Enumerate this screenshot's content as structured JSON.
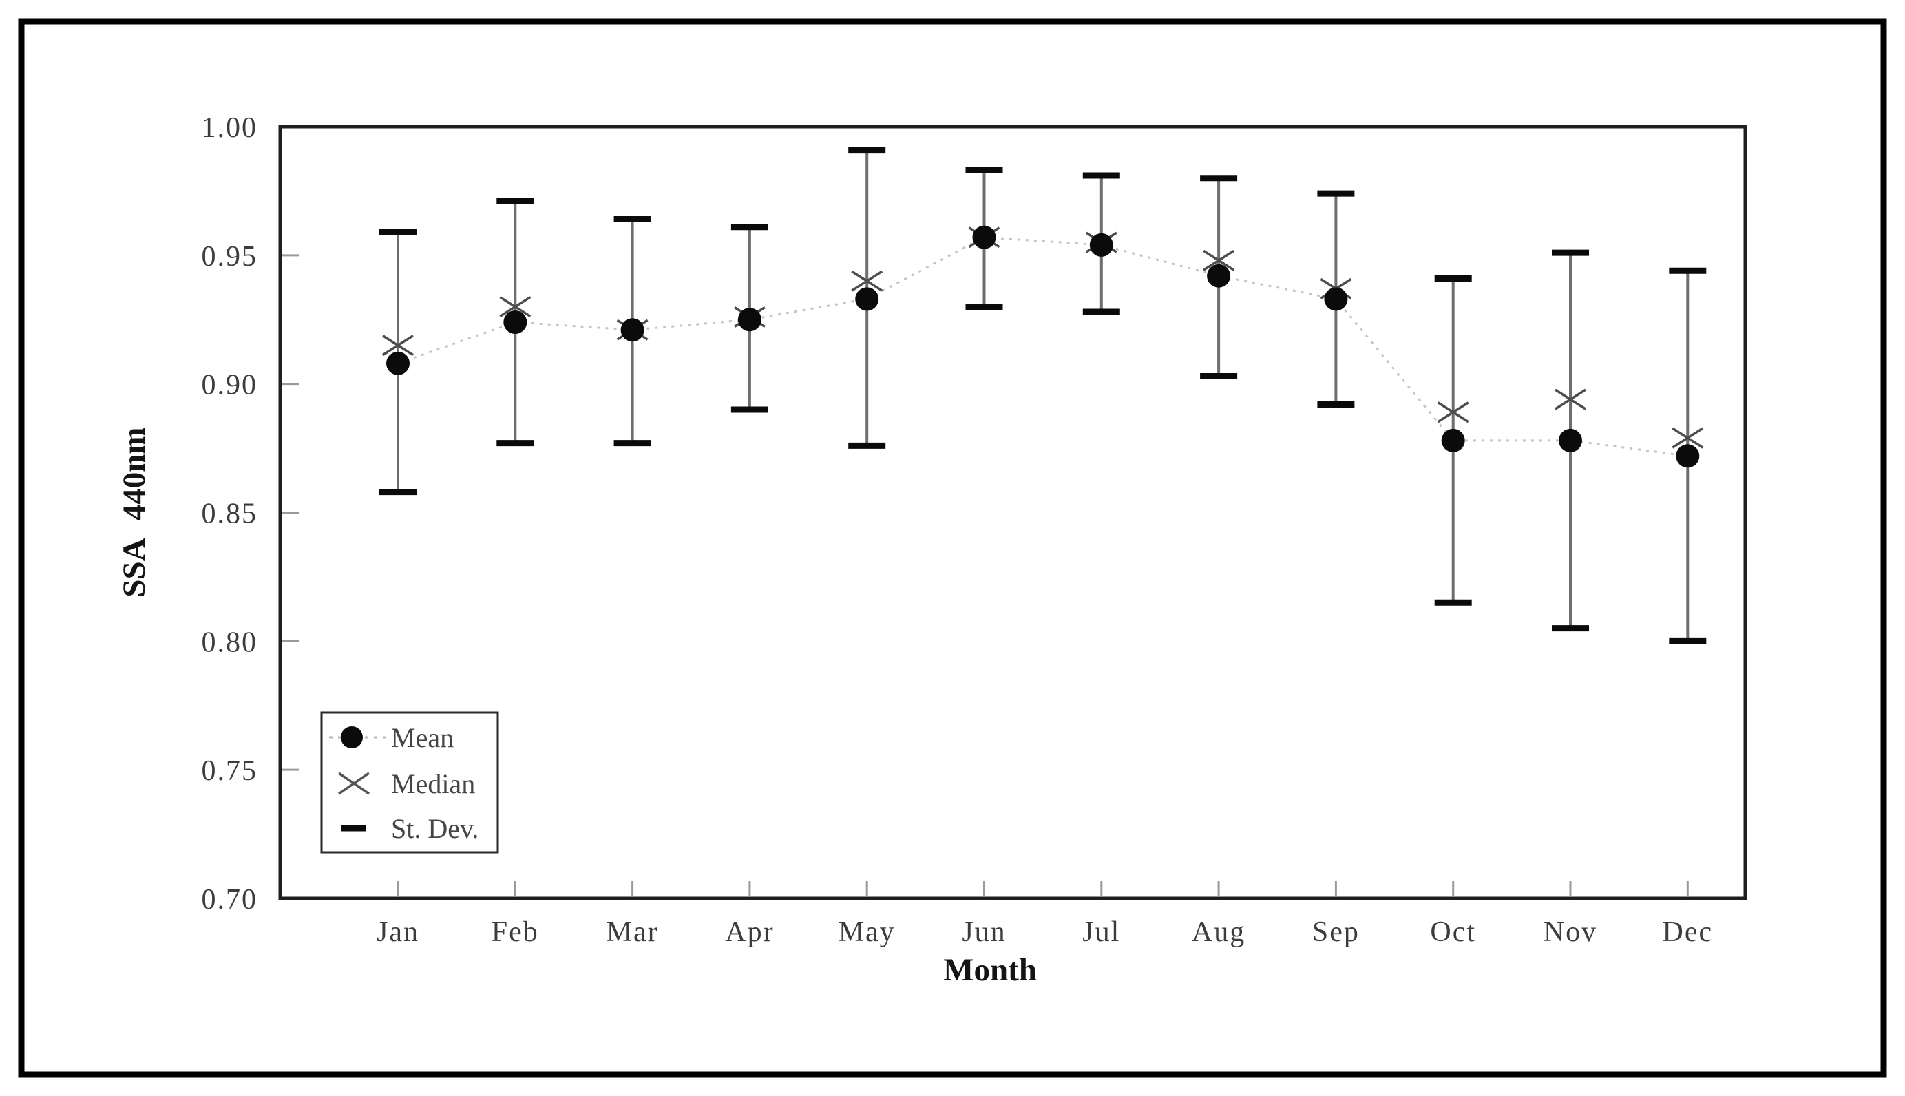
{
  "figure": {
    "description": "Monthly statistics of single scattering albedo at 440nm: mean, median and standard deviation error bars",
    "background_color": "#ffffff",
    "outer_border_color": "#000000"
  },
  "chart_data": {
    "type": "line",
    "title": "",
    "xlabel": "Month",
    "ylabel": "SSA 440nm",
    "categories": [
      "Jan",
      "Feb",
      "Mar",
      "Apr",
      "May",
      "Jun",
      "Jul",
      "Aug",
      "Sep",
      "Oct",
      "Nov",
      "Dec"
    ],
    "ylim": [
      0.7,
      1.0
    ],
    "yticks": [
      1.0,
      0.95,
      0.9,
      0.85,
      0.8,
      0.75,
      0.7
    ],
    "ytick_labels": [
      "1.00",
      "0.95",
      "0.90",
      "0.85",
      "0.80",
      "0.75",
      "0.70"
    ],
    "grid": false,
    "legend_position": "lower-left",
    "series": [
      {
        "name": "Mean",
        "marker": "filled-circle",
        "line": "dotted",
        "values": [
          0.908,
          0.924,
          0.921,
          0.925,
          0.933,
          0.957,
          0.954,
          0.942,
          0.933,
          0.878,
          0.878,
          0.872
        ]
      },
      {
        "name": "Median",
        "marker": "x",
        "line": "none",
        "values": [
          0.915,
          0.93,
          0.921,
          0.926,
          0.94,
          0.957,
          0.955,
          0.948,
          0.937,
          0.889,
          0.894,
          0.879
        ]
      },
      {
        "name": "St. Dev.",
        "type": "error_bars",
        "marker": "cap",
        "upper": [
          0.959,
          0.971,
          0.964,
          0.961,
          0.991,
          0.983,
          0.981,
          0.98,
          0.974,
          0.941,
          0.951,
          0.944
        ],
        "lower": [
          0.858,
          0.877,
          0.877,
          0.89,
          0.876,
          0.93,
          0.928,
          0.903,
          0.892,
          0.815,
          0.805,
          0.8
        ]
      }
    ]
  },
  "legend": {
    "items": [
      {
        "label": "Mean",
        "symbol": "filled-circle-on-dotted-line"
      },
      {
        "label": "Median",
        "symbol": "x-mark"
      },
      {
        "label": "St. Dev.",
        "symbol": "horizontal-cap-dash"
      }
    ]
  },
  "colors": {
    "mean_marker": "#0b0b0b",
    "median_marker": "#4d4d4d",
    "error_bar_line": "#6e6e6e",
    "error_bar_cap": "#0a0a0a",
    "connector_line": "#c4c4c4",
    "tick_text": "#3c3c3c",
    "axis_frame": "#1f1f1f",
    "tick_mark": "#9a9a9a"
  }
}
